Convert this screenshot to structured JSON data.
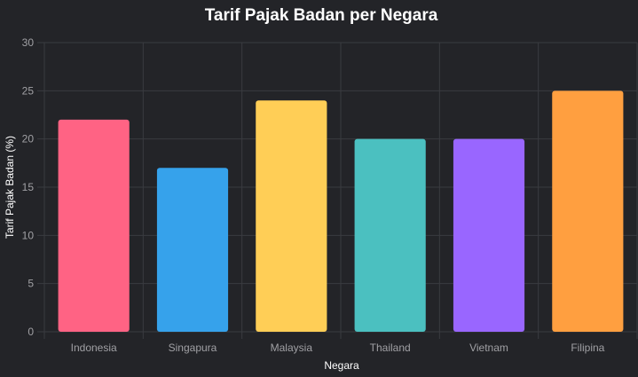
{
  "chart_data": {
    "type": "bar",
    "title": "Tarif Pajak Badan per Negara",
    "xlabel": "Negara",
    "ylabel": "Tarif Pajak Badan (%)",
    "categories": [
      "Indonesia",
      "Singapura",
      "Malaysia",
      "Thailand",
      "Vietnam",
      "Filipina"
    ],
    "values": [
      22,
      17,
      24,
      20,
      20,
      25
    ],
    "colors": [
      "#ff6384",
      "#36a2eb",
      "#ffce56",
      "#4bc0c0",
      "#9966ff",
      "#ff9f40"
    ],
    "ylim": [
      0,
      30
    ],
    "yticks": [
      "0",
      "5",
      "10",
      "15",
      "20",
      "25",
      "30"
    ],
    "grid": true,
    "legend": "none"
  }
}
